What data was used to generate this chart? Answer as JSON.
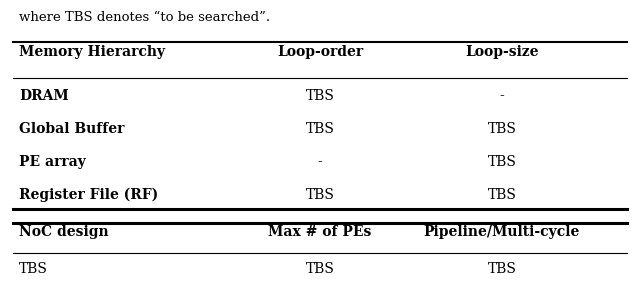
{
  "caption": "where TBS denotes “to be searched”.",
  "table1_headers": [
    "Memory Hierarchy",
    "Loop-order",
    "Loop-size"
  ],
  "table1_rows": [
    [
      "DRAM",
      "TBS",
      "-"
    ],
    [
      "Global Buffer",
      "TBS",
      "TBS"
    ],
    [
      "PE array",
      "-",
      "TBS"
    ],
    [
      "Register File (RF)",
      "TBS",
      "TBS"
    ]
  ],
  "table2_headers": [
    "NoC design",
    "Max # of PEs",
    "Pipeline/Multi-cycle"
  ],
  "table2_rows": [
    [
      "TBS",
      "TBS",
      "TBS"
    ]
  ],
  "background_color": "#ffffff",
  "text_color": "#000000",
  "font_size_header": 10,
  "font_size_body": 10
}
